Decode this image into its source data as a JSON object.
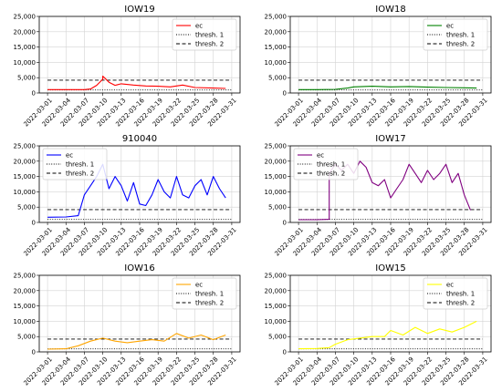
{
  "chart_data": [
    {
      "type": "line",
      "title": "IOW19",
      "color": "#ff0000",
      "ylim": [
        0,
        25000
      ],
      "yticks": [
        "0",
        "5,000",
        "10,000",
        "15,000",
        "20,000",
        "25,000"
      ],
      "x_range": [
        "2022-03-01",
        "2022-03-31"
      ],
      "xticks": [
        "2022-03-01",
        "2022-03-04",
        "2022-03-07",
        "2022-03-10",
        "2022-03-13",
        "2022-03-16",
        "2022-03-19",
        "2022-03-22",
        "2022-03-25",
        "2022-03-28",
        "2022-03-31"
      ],
      "grid": true,
      "legend_position": "top-right",
      "legend": [
        "ec",
        "thresh. 1",
        "thresh. 2"
      ],
      "thresh1": 1000,
      "thresh2": 4200,
      "series": [
        {
          "name": "ec",
          "x": [
            "2022-03-01",
            "2022-03-04",
            "2022-03-07",
            "2022-03-08",
            "2022-03-09",
            "2022-03-10",
            "2022-03-10",
            "2022-03-11",
            "2022-03-12",
            "2022-03-13",
            "2022-03-15",
            "2022-03-17",
            "2022-03-19",
            "2022-03-21",
            "2022-03-23",
            "2022-03-25",
            "2022-03-28",
            "2022-03-30"
          ],
          "y": [
            1100,
            1100,
            1100,
            1300,
            2500,
            4500,
            5500,
            3500,
            2500,
            3000,
            2600,
            2300,
            2200,
            2000,
            2600,
            1800,
            1600,
            1500
          ]
        }
      ]
    },
    {
      "type": "line",
      "title": "IOW18",
      "color": "#008000",
      "ylim": [
        0,
        25000
      ],
      "yticks": [
        "0",
        "5,000",
        "10,000",
        "15,000",
        "20,000",
        "25,000"
      ],
      "x_range": [
        "2022-03-01",
        "2022-03-31"
      ],
      "xticks": [
        "2022-03-01",
        "2022-03-04",
        "2022-03-07",
        "2022-03-10",
        "2022-03-13",
        "2022-03-16",
        "2022-03-19",
        "2022-03-22",
        "2022-03-25",
        "2022-03-28",
        "2022-03-31"
      ],
      "grid": true,
      "legend_position": "top-right",
      "legend": [
        "ec",
        "thresh. 1",
        "thresh. 2"
      ],
      "thresh1": 1000,
      "thresh2": 4200,
      "series": [
        {
          "name": "ec",
          "x": [
            "2022-03-01",
            "2022-03-04",
            "2022-03-07",
            "2022-03-09",
            "2022-03-10",
            "2022-03-13",
            "2022-03-16",
            "2022-03-19",
            "2022-03-22",
            "2022-03-25",
            "2022-03-28",
            "2022-03-30"
          ],
          "y": [
            1100,
            1100,
            1200,
            1600,
            2000,
            2200,
            2000,
            2100,
            1900,
            1800,
            1700,
            1600
          ]
        }
      ]
    },
    {
      "type": "line",
      "title": "910040",
      "color": "#0000ff",
      "ylim": [
        0,
        25000
      ],
      "yticks": [
        "0",
        "5,000",
        "10,000",
        "15,000",
        "20,000",
        "25,000"
      ],
      "x_range": [
        "2022-03-01",
        "2022-03-31"
      ],
      "xticks": [
        "2022-03-01",
        "2022-03-04",
        "2022-03-07",
        "2022-03-10",
        "2022-03-13",
        "2022-03-16",
        "2022-03-19",
        "2022-03-22",
        "2022-03-25",
        "2022-03-28",
        "2022-03-31"
      ],
      "grid": true,
      "legend_position": "top-left",
      "legend": [
        "ec",
        "thresh. 1",
        "thresh. 2"
      ],
      "thresh1": 1000,
      "thresh2": 4200,
      "series": [
        {
          "name": "ec",
          "x": [
            "2022-03-01",
            "2022-03-04",
            "2022-03-06",
            "2022-03-07",
            "2022-03-08",
            "2022-03-09",
            "2022-03-10",
            "2022-03-11",
            "2022-03-12",
            "2022-03-13",
            "2022-03-14",
            "2022-03-15",
            "2022-03-16",
            "2022-03-17",
            "2022-03-18",
            "2022-03-19",
            "2022-03-20",
            "2022-03-21",
            "2022-03-22",
            "2022-03-23",
            "2022-03-24",
            "2022-03-25",
            "2022-03-26",
            "2022-03-27",
            "2022-03-28",
            "2022-03-29",
            "2022-03-30"
          ],
          "y": [
            1700,
            1800,
            2200,
            9000,
            12000,
            15000,
            19000,
            11000,
            15000,
            12000,
            7000,
            13000,
            6000,
            5500,
            9000,
            14000,
            10000,
            8000,
            15000,
            9000,
            8000,
            12000,
            14000,
            9000,
            15000,
            11000,
            8000
          ]
        }
      ]
    },
    {
      "type": "line",
      "title": "IOW17",
      "color": "#800080",
      "ylim": [
        0,
        25000
      ],
      "yticks": [
        "0",
        "5,000",
        "10,000",
        "15,000",
        "20,000",
        "25,000"
      ],
      "x_range": [
        "2022-03-01",
        "2022-03-31"
      ],
      "xticks": [
        "2022-03-01",
        "2022-03-04",
        "2022-03-07",
        "2022-03-10",
        "2022-03-13",
        "2022-03-16",
        "2022-03-19",
        "2022-03-22",
        "2022-03-25",
        "2022-03-28",
        "2022-03-31"
      ],
      "grid": true,
      "legend_position": "top-left",
      "legend": [
        "ec",
        "thresh. 1",
        "thresh. 2"
      ],
      "thresh1": 1000,
      "thresh2": 4200,
      "series": [
        {
          "name": "ec",
          "x": [
            "2022-03-01",
            "2022-03-04",
            "2022-03-06",
            "2022-03-06",
            "2022-03-07",
            "2022-03-08",
            "2022-03-09",
            "2022-03-10",
            "2022-03-11",
            "2022-03-12",
            "2022-03-13",
            "2022-03-14",
            "2022-03-15",
            "2022-03-16",
            "2022-03-17",
            "2022-03-18",
            "2022-03-19",
            "2022-03-20",
            "2022-03-21",
            "2022-03-22",
            "2022-03-23",
            "2022-03-24",
            "2022-03-25",
            "2022-03-26",
            "2022-03-27",
            "2022-03-28",
            "2022-03-29"
          ],
          "y": [
            900,
            900,
            1000,
            16000,
            19000,
            17000,
            19000,
            16000,
            20000,
            18000,
            13000,
            12000,
            14000,
            8000,
            11000,
            14000,
            19000,
            16000,
            13000,
            17000,
            14000,
            16000,
            19000,
            13000,
            16000,
            9000,
            4000
          ]
        }
      ]
    },
    {
      "type": "line",
      "title": "IOW16",
      "color": "#ffa500",
      "ylim": [
        0,
        25000
      ],
      "yticks": [
        "0",
        "5,000",
        "10,000",
        "15,000",
        "20,000",
        "25,000"
      ],
      "x_range": [
        "2022-03-01",
        "2022-03-31"
      ],
      "xticks": [
        "2022-03-01",
        "2022-03-04",
        "2022-03-07",
        "2022-03-10",
        "2022-03-13",
        "2022-03-16",
        "2022-03-19",
        "2022-03-22",
        "2022-03-25",
        "2022-03-28",
        "2022-03-31"
      ],
      "grid": true,
      "legend_position": "top-right",
      "legend": [
        "ec",
        "thresh. 1",
        "thresh. 2"
      ],
      "thresh1": 1000,
      "thresh2": 4200,
      "series": [
        {
          "name": "ec",
          "x": [
            "2022-03-01",
            "2022-03-04",
            "2022-03-06",
            "2022-03-08",
            "2022-03-10",
            "2022-03-12",
            "2022-03-14",
            "2022-03-16",
            "2022-03-18",
            "2022-03-20",
            "2022-03-22",
            "2022-03-24",
            "2022-03-26",
            "2022-03-28",
            "2022-03-30"
          ],
          "y": [
            900,
            1000,
            2000,
            3500,
            4500,
            3500,
            3000,
            3500,
            4000,
            3500,
            6000,
            4500,
            5500,
            4000,
            5500
          ]
        }
      ]
    },
    {
      "type": "line",
      "title": "IOW15",
      "color": "#ffff00",
      "ylim": [
        0,
        25000
      ],
      "yticks": [
        "0",
        "5,000",
        "10,000",
        "15,000",
        "20,000",
        "25,000"
      ],
      "x_range": [
        "2022-03-01",
        "2022-03-31"
      ],
      "xticks": [
        "2022-03-01",
        "2022-03-04",
        "2022-03-07",
        "2022-03-10",
        "2022-03-13",
        "2022-03-16",
        "2022-03-19",
        "2022-03-22",
        "2022-03-25",
        "2022-03-28",
        "2022-03-31"
      ],
      "grid": true,
      "legend_position": "top-right",
      "legend": [
        "ec",
        "thresh. 1",
        "thresh. 2"
      ],
      "thresh1": 1000,
      "thresh2": 4200,
      "series": [
        {
          "name": "ec",
          "x": [
            "2022-03-01",
            "2022-03-04",
            "2022-03-06",
            "2022-03-07",
            "2022-03-09",
            "2022-03-11",
            "2022-03-13",
            "2022-03-15",
            "2022-03-16",
            "2022-03-18",
            "2022-03-20",
            "2022-03-22",
            "2022-03-24",
            "2022-03-26",
            "2022-03-28",
            "2022-03-30"
          ],
          "y": [
            1000,
            1100,
            1400,
            2500,
            4000,
            4500,
            5000,
            5000,
            7000,
            5500,
            8000,
            6000,
            7500,
            6500,
            8000,
            10000
          ]
        }
      ]
    }
  ]
}
